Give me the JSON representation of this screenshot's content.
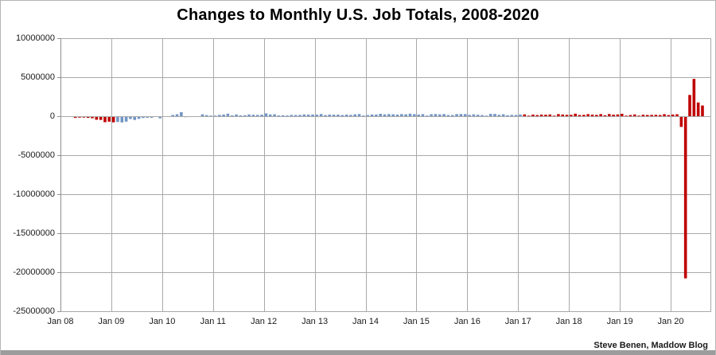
{
  "header": {
    "title": "Changes to Monthly U.S. Job Totals, 2008-2020"
  },
  "footer": {
    "attribution": "Steve Benen, Maddow Blog"
  },
  "colors": {
    "bar_red": "#c00000",
    "bar_blue": "#7295c5",
    "gridline": "#a9a9a9",
    "axis_line": "#8f8f8f",
    "text": "#1a1a1a",
    "bottom_bar": "#9c9c9c",
    "window_border": "#b5b5b5"
  },
  "chart_data": {
    "type": "bar",
    "title": "Changes to Monthly U.S. Job Totals, 2008-2020",
    "xlabel": "",
    "ylabel": "",
    "start_month": "Jan 2008",
    "end_month": "Aug 2020",
    "ylim": [
      -25000000,
      10000000
    ],
    "gridline_interval": 5000000,
    "grid": true,
    "legend": "none",
    "y_tick_labels": [
      "10000000",
      "5000000",
      "0",
      "-5000000",
      "-10000000",
      "-15000000",
      "-20000000",
      "-25000000"
    ],
    "x_tick_labels": [
      "Jan 08",
      "Jan 09",
      "Jan 10",
      "Jan 11",
      "Jan 12",
      "Jan 13",
      "Jan 14",
      "Jan 15",
      "Jan 16",
      "Jan 17",
      "Jan 18",
      "Jan 19",
      "Jan 20"
    ],
    "months_per_x_tick": 12,
    "bar_color_segments": [
      {
        "from_index": 0,
        "to_index": 12,
        "color": "#c00000"
      },
      {
        "from_index": 13,
        "to_index": 108,
        "color": "#7295c5"
      },
      {
        "from_index": 109,
        "to_index": 151,
        "color": "#c00000"
      }
    ],
    "values": [
      -17000,
      -83000,
      -80000,
      -214000,
      -182000,
      -172000,
      -210000,
      -259000,
      -452000,
      -474000,
      -765000,
      -697000,
      -783000,
      -743000,
      -800000,
      -695000,
      -361000,
      -482000,
      -339000,
      -231000,
      -199000,
      -202000,
      -42000,
      -270000,
      -40000,
      -35000,
      163000,
      251000,
      516000,
      -122000,
      -61000,
      -42000,
      -57000,
      241000,
      137000,
      71000,
      70000,
      168000,
      212000,
      322000,
      102000,
      217000,
      106000,
      122000,
      221000,
      183000,
      164000,
      196000,
      360000,
      226000,
      243000,
      96000,
      110000,
      88000,
      160000,
      150000,
      161000,
      225000,
      203000,
      214000,
      197000,
      280000,
      141000,
      203000,
      199000,
      201000,
      149000,
      202000,
      164000,
      237000,
      274000,
      84000,
      144000,
      222000,
      203000,
      304000,
      229000,
      267000,
      243000,
      203000,
      271000,
      243000,
      321000,
      256000,
      201000,
      266000,
      84000,
      251000,
      273000,
      228000,
      277000,
      150000,
      149000,
      271000,
      280000,
      271000,
      168000,
      233000,
      186000,
      144000,
      43000,
      297000,
      291000,
      176000,
      249000,
      124000,
      164000,
      155000,
      216000,
      232000,
      50000,
      207000,
      145000,
      210000,
      189000,
      221000,
      14000,
      271000,
      216000,
      175000,
      176000,
      324000,
      155000,
      175000,
      268000,
      208000,
      165000,
      270000,
      119000,
      277000,
      196000,
      227000,
      312000,
      56000,
      153000,
      224000,
      62000,
      193000,
      159000,
      168000,
      180000,
      152000,
      261000,
      147000,
      214000,
      251000,
      -1373000,
      -20787000,
      2725000,
      4781000,
      1761000,
      1371000
    ]
  }
}
